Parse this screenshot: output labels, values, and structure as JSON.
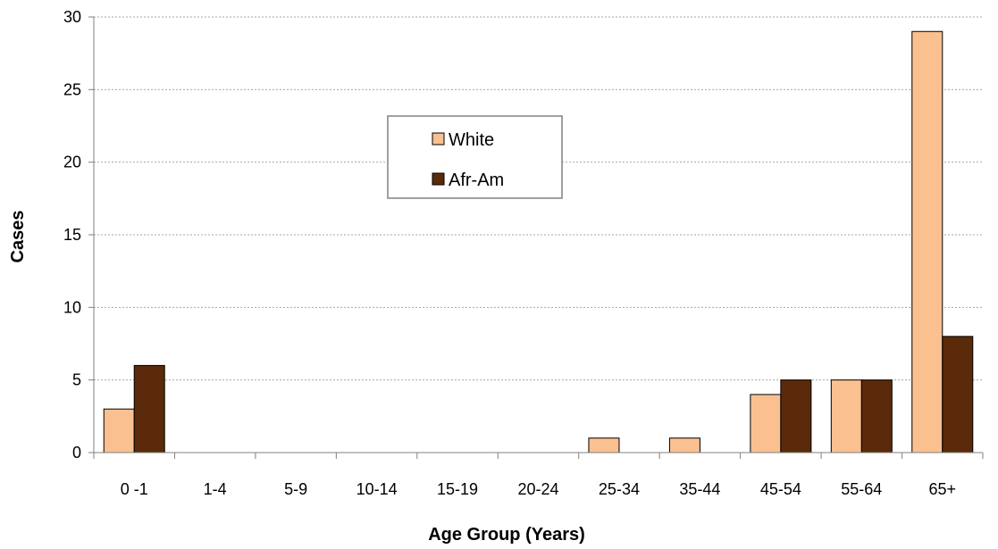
{
  "chart_data": {
    "type": "bar",
    "categories": [
      "0 -1",
      "1-4",
      "5-9",
      "10-14",
      "15-19",
      "20-24",
      "25-34",
      "35-44",
      "45-54",
      "55-64",
      "65+"
    ],
    "series": [
      {
        "name": "White",
        "values": [
          3,
          0,
          0,
          0,
          0,
          0,
          1,
          1,
          4,
          5,
          29
        ],
        "color": "#FAC090"
      },
      {
        "name": "Afr-Am",
        "values": [
          6,
          0,
          0,
          0,
          0,
          0,
          0,
          0,
          5,
          5,
          8
        ],
        "color": "#5A2A0A"
      }
    ],
    "title": "",
    "xlabel": "Age Group (Years)",
    "ylabel": "Cases",
    "ylim": [
      0,
      30
    ],
    "yticks": [
      0,
      5,
      10,
      15,
      20,
      25,
      30
    ],
    "grid": true,
    "legend_position": "upper-center"
  }
}
